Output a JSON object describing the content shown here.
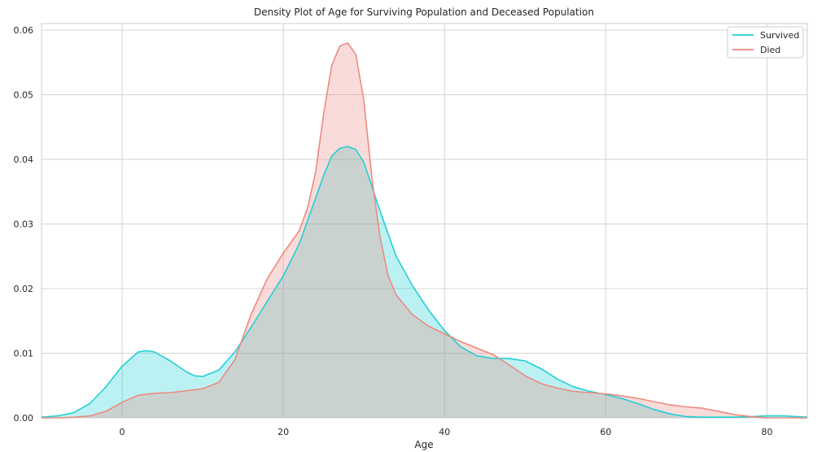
{
  "chart_data": {
    "type": "area",
    "title": "Density Plot of Age for Surviving Population and Deceased Population",
    "xlabel": "Age",
    "ylabel": "",
    "xlim": [
      -10,
      85
    ],
    "ylim": [
      0,
      0.061
    ],
    "xticks": [
      0,
      20,
      40,
      60,
      80
    ],
    "yticks": [
      0.0,
      0.01,
      0.02,
      0.03,
      0.04,
      0.05,
      0.06
    ],
    "ytick_labels": [
      "0.00",
      "0.01",
      "0.02",
      "0.03",
      "0.04",
      "0.05",
      "0.06"
    ],
    "grid": true,
    "legend_position": "top-right",
    "series": [
      {
        "name": "Survived",
        "color": "#22cfd6",
        "x": [
          -10,
          -8,
          -6,
          -4,
          -2,
          0,
          2,
          3,
          4,
          6,
          8,
          9,
          10,
          12,
          14,
          16,
          18,
          20,
          22,
          24,
          25,
          26,
          27,
          28,
          29,
          30,
          32,
          34,
          36,
          38,
          40,
          42,
          44,
          46,
          48,
          50,
          52,
          54,
          56,
          58,
          60,
          62,
          64,
          66,
          68,
          70,
          72,
          74,
          76,
          78,
          80,
          82,
          85
        ],
        "values": [
          0.0001,
          0.0003,
          0.0008,
          0.0022,
          0.0048,
          0.008,
          0.0102,
          0.0104,
          0.0102,
          0.0088,
          0.0071,
          0.0065,
          0.0064,
          0.0074,
          0.0102,
          0.014,
          0.018,
          0.022,
          0.027,
          0.034,
          0.0375,
          0.0405,
          0.0417,
          0.042,
          0.0415,
          0.0395,
          0.032,
          0.025,
          0.0205,
          0.0167,
          0.0135,
          0.011,
          0.0096,
          0.0092,
          0.0092,
          0.0088,
          0.0076,
          0.006,
          0.0048,
          0.0041,
          0.0036,
          0.003,
          0.0022,
          0.0013,
          0.0006,
          0.0002,
          0.0001,
          0.0001,
          0.0001,
          0.0002,
          0.0003,
          0.0003,
          0.0001
        ]
      },
      {
        "name": "Died",
        "color": "#ec8a80",
        "x": [
          -10,
          -8,
          -6,
          -4,
          -2,
          0,
          2,
          4,
          6,
          8,
          10,
          12,
          14,
          16,
          18,
          20,
          22,
          23,
          24,
          25,
          26,
          27,
          28,
          29,
          30,
          31,
          32,
          33,
          34,
          36,
          38,
          40,
          42,
          44,
          46,
          48,
          50,
          52,
          54,
          56,
          58,
          60,
          62,
          64,
          66,
          68,
          70,
          72,
          74,
          76,
          78,
          80,
          82,
          85
        ],
        "values": [
          0.0,
          0.0,
          0.0001,
          0.0003,
          0.001,
          0.0024,
          0.0035,
          0.0038,
          0.0039,
          0.0042,
          0.0045,
          0.0055,
          0.009,
          0.016,
          0.0215,
          0.0255,
          0.029,
          0.0325,
          0.038,
          0.047,
          0.0545,
          0.0575,
          0.058,
          0.0562,
          0.049,
          0.037,
          0.028,
          0.022,
          0.019,
          0.016,
          0.0142,
          0.013,
          0.0118,
          0.0108,
          0.0098,
          0.0082,
          0.0065,
          0.0053,
          0.0046,
          0.0041,
          0.0039,
          0.0037,
          0.0034,
          0.003,
          0.0025,
          0.002,
          0.0017,
          0.0015,
          0.001,
          0.0005,
          0.0002,
          0.0,
          0.0,
          0.0
        ]
      }
    ]
  }
}
